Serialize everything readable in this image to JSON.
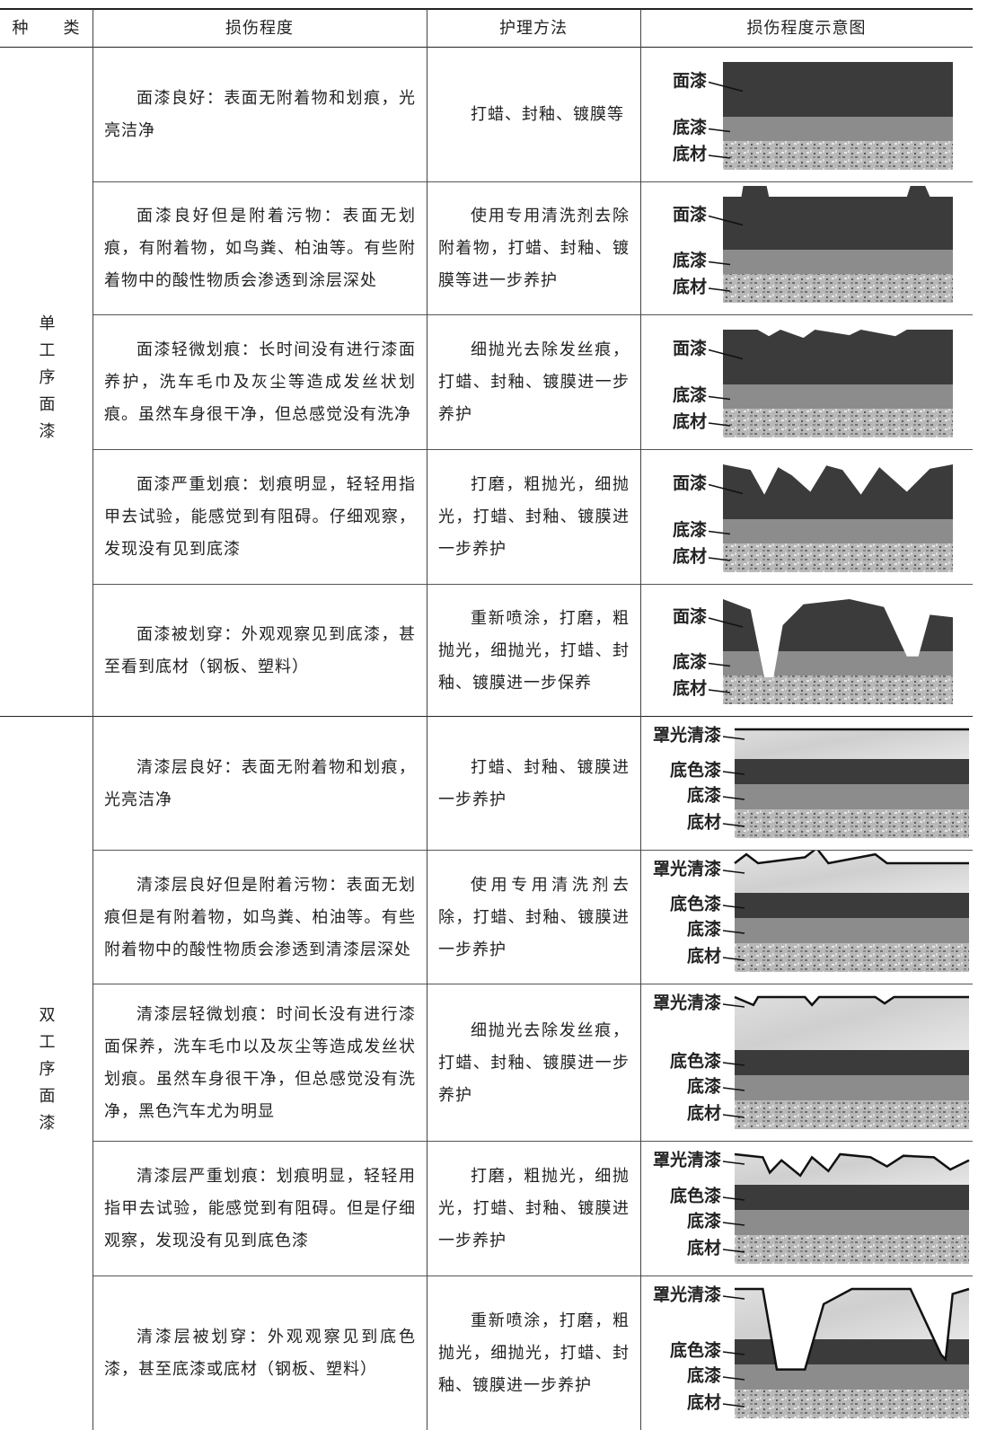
{
  "table": {
    "header": [
      "种　　类",
      "损伤程度",
      "护理方法",
      "损伤程度示意图"
    ],
    "groups": [
      {
        "name": "单工序面漆",
        "rows": [
          {
            "damage": "面漆良好：表面无附着物和划痕，光亮洁净",
            "care": "打蜡、封釉、镀膜等",
            "diagram": [
              "面漆",
              "底漆",
              "底材"
            ]
          },
          {
            "damage": "面漆良好但是附着污物：表面无划痕，有附着物，如鸟粪、柏油等。有些附着物中的酸性物质会渗透到涂层深处",
            "care": "使用专用清洗剂去除附着物，打蜡、封釉、镀膜等进一步养护",
            "diagram": [
              "面漆",
              "底漆",
              "底材"
            ]
          },
          {
            "damage": "面漆轻微划痕：长时间没有进行漆面养护，洗车毛巾及灰尘等造成发丝状划痕。虽然车身很干净，但总感觉没有洗净",
            "care": "细抛光去除发丝痕，打蜡、封釉、镀膜进一步养护",
            "diagram": [
              "面漆",
              "底漆",
              "底材"
            ]
          },
          {
            "damage": "面漆严重划痕：划痕明显，轻轻用指甲去试验，能感觉到有阻碍。仔细观察，发现没有见到底漆",
            "care": "打磨，粗抛光，细抛光，打蜡、封釉、镀膜进一步养护",
            "diagram": [
              "面漆",
              "底漆",
              "底材"
            ]
          },
          {
            "damage": "面漆被划穿：外观观察见到底漆，甚至看到底材（钢板、塑料）",
            "care": "重新喷涂，打磨，粗抛光，细抛光，打蜡、封釉、镀膜进一步保养",
            "diagram": [
              "面漆",
              "底漆",
              "底材"
            ]
          }
        ]
      },
      {
        "name": "双工序面漆",
        "rows": [
          {
            "damage": "清漆层良好：表面无附着物和划痕，光亮洁净",
            "care": "打蜡、封釉、镀膜进一步养护",
            "diagram": [
              "罩光清漆",
              "底色漆",
              "底漆",
              "底材"
            ]
          },
          {
            "damage": "清漆层良好但是附着污物：表面无划痕但是有附着物，如鸟粪、柏油等。有些附着物中的酸性物质会渗透到清漆层深处",
            "care": "使用专用清洗剂去除，打蜡、封釉、镀膜进一步养护",
            "diagram": [
              "罩光清漆",
              "底色漆",
              "底漆",
              "底材"
            ]
          },
          {
            "damage": "清漆层轻微划痕：时间长没有进行漆面保养，洗车毛巾以及灰尘等造成发丝状划痕。虽然车身很干净，但总感觉没有洗净，黑色汽车尤为明显",
            "care": "细抛光去除发丝痕，打蜡、封釉、镀膜进一步养护",
            "diagram": [
              "罩光清漆",
              "底色漆",
              "底漆",
              "底材"
            ]
          },
          {
            "damage": "清漆层严重划痕：划痕明显，轻轻用指甲去试验，能感觉到有阻碍。但是仔细观察，发现没有见到底色漆",
            "care": "打磨，粗抛光，细抛光，打蜡、封釉、镀膜进一步养护",
            "diagram": [
              "罩光清漆",
              "底色漆",
              "底漆",
              "底材"
            ]
          },
          {
            "damage": "清漆层被划穿：外观观察见到底色漆，甚至底漆或底材（钢板、塑料）",
            "care": "重新喷涂，打磨，粗抛光，细抛光，打蜡、封釉、镀膜进一步养护",
            "diagram": [
              "罩光清漆",
              "底色漆",
              "底漆",
              "底材"
            ]
          }
        ]
      }
    ]
  }
}
